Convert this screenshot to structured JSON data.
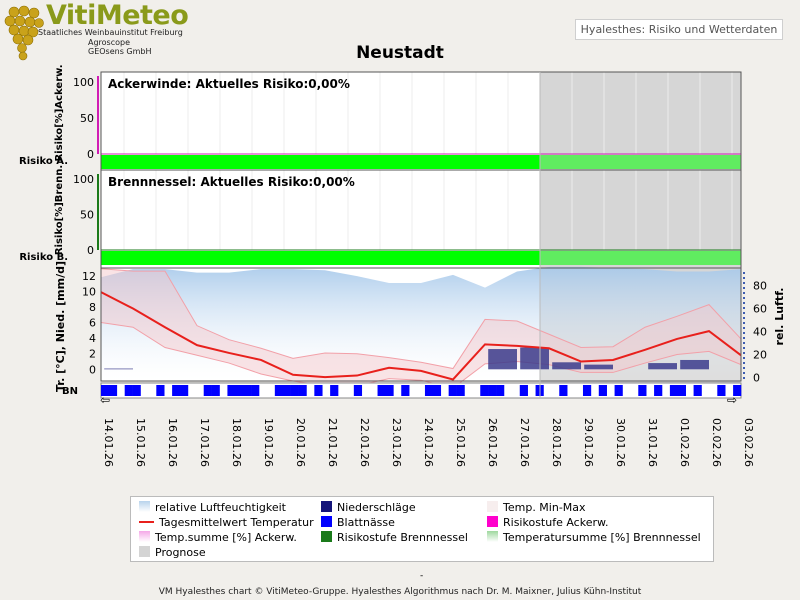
{
  "header": {
    "app_name": "VitiMeteo",
    "org_lines": [
      "Staatliches Weinbauinstitut Freiburg",
      "Agroscope",
      "GEOsens GmbH"
    ],
    "chart_name": "Hyalesthes: Risiko und Wetterdaten"
  },
  "footer": {
    "dash": "-",
    "text": "VM Hyalesthes chart © VitiMeteo-Gruppe. Hyalesthes Algorithmus nach Dr. M. Maixner, Julius Kühn-Institut"
  },
  "legend": {
    "items": [
      {
        "label": "relative Luftfeuchtigkeit",
        "color": "#b8d3ec",
        "kind": "area"
      },
      {
        "label": "Niederschläge",
        "color": "#14147a",
        "kind": "box"
      },
      {
        "label": "Temp. Min-Max",
        "color": "#f7eeee",
        "kind": "box"
      },
      {
        "label": "Tagesmittelwert Temperatur",
        "color": "#e8201c",
        "kind": "line"
      },
      {
        "label": "Blattnässe",
        "color": "#0000ff",
        "kind": "box"
      },
      {
        "label": "Risikostufe Ackerw.",
        "color": "#ff00cc",
        "kind": "box"
      },
      {
        "label": "Temp.summe [%] Ackerw.",
        "color": "#f4a8e8",
        "kind": "grad"
      },
      {
        "label": "Risikostufe Brennnessel",
        "color": "#1a7a1a",
        "kind": "box"
      },
      {
        "label": "Temperatursumme [%] Brennnessel",
        "color": "#9ed89e",
        "kind": "grad"
      },
      {
        "label": "Prognose",
        "color": "#d4d4d4",
        "kind": "box"
      }
    ]
  },
  "chart_data": {
    "title": "Neustadt",
    "dates": [
      "14.01.26",
      "15.01.26",
      "16.01.26",
      "17.01.26",
      "18.01.26",
      "19.01.26",
      "20.01.26",
      "21.01.26",
      "22.01.26",
      "23.01.26",
      "24.01.26",
      "25.01.26",
      "26.01.26",
      "27.01.26",
      "28.01.26",
      "29.01.26",
      "30.01.26",
      "31.01.26",
      "01.02.26",
      "02.02.26",
      "03.02.26"
    ],
    "prognose_from": "28.01.26",
    "panels": [
      {
        "name": "Ackerwinde",
        "annotation": "Ackerwinde: Aktuelles Risiko:0,00%",
        "ylabel": "Risiko[%]Ackerw.",
        "risk_label": "Risiko A.",
        "yticks": [
          "100",
          "50",
          "0"
        ],
        "ylim": [
          0,
          100
        ],
        "risk_level_color": "#00ff00",
        "values": [
          0,
          0,
          0,
          0,
          0,
          0,
          0,
          0,
          0,
          0,
          0,
          0,
          0,
          0,
          0,
          0,
          0,
          0,
          0,
          0,
          0
        ]
      },
      {
        "name": "Brennnessel",
        "annotation": "Brennnessel: Aktuelles Risiko:0,00%",
        "ylabel": "Risiko[%]Brenn.",
        "risk_label": "Risiko B.",
        "yticks": [
          "100",
          "50",
          "0"
        ],
        "ylim": [
          0,
          100
        ],
        "risk_level_color": "#00ff00",
        "values": [
          0,
          0,
          0,
          0,
          0,
          0,
          0,
          0,
          0,
          0,
          0,
          0,
          0,
          0,
          0,
          0,
          0,
          0,
          0,
          0,
          0
        ]
      }
    ],
    "weather": {
      "ylabel_left": "Tr. [°C], Nied. [mm/d]",
      "ylabel_right": "rel. Luftf.",
      "left_ticks": [
        "12",
        "10",
        "8",
        "6",
        "4",
        "2",
        "0"
      ],
      "left_ylim": [
        -1.5,
        13
      ],
      "right_ticks": [
        "80",
        "60",
        "40",
        "20",
        "0"
      ],
      "right_ylim": [
        -3,
        95
      ],
      "humidity": [
        87,
        94,
        94,
        91,
        91,
        94,
        94,
        93,
        88,
        82,
        82,
        89,
        78,
        92,
        96,
        96,
        95,
        94,
        92,
        92,
        94
      ],
      "temp_mean": [
        9.9,
        7.8,
        5.4,
        3.1,
        2.1,
        1.2,
        -0.7,
        -1.0,
        -0.8,
        0.2,
        -0.2,
        -1.3,
        3.2,
        3.0,
        2.7,
        1.0,
        1.2,
        2.5,
        3.9,
        4.9,
        1.8
      ],
      "temp_max": [
        12.9,
        12.6,
        12.6,
        5.6,
        3.8,
        2.7,
        1.4,
        2.1,
        2.0,
        1.5,
        0.9,
        0.1,
        6.4,
        6.2,
        4.5,
        2.8,
        2.9,
        5.4,
        6.8,
        8.3,
        3.9
      ],
      "temp_min": [
        6.0,
        5.4,
        2.8,
        1.8,
        0.8,
        -0.6,
        -1.5,
        -2.1,
        -2.1,
        -1.2,
        -1.4,
        -2.4,
        0.7,
        1.0,
        0.6,
        -0.4,
        -0.4,
        0.8,
        1.9,
        2.3,
        0.6
      ],
      "precip": [
        0,
        0.1,
        0,
        0,
        0,
        0,
        0,
        0,
        0,
        0,
        0,
        0,
        0,
        2.6,
        2.8,
        0.9,
        0.6,
        0,
        0.8,
        1.2,
        0
      ],
      "bn_label": "BN",
      "leaf_wetness": [
        1,
        1,
        0,
        1,
        1,
        0,
        0,
        1,
        0,
        1,
        1,
        0,
        0,
        1,
        1,
        0,
        1,
        1,
        1,
        1,
        0,
        0,
        1,
        1,
        1,
        1,
        0,
        1,
        0,
        1,
        0,
        0,
        1,
        0,
        0,
        1,
        1,
        0,
        1,
        0,
        0,
        1,
        1,
        0,
        1,
        1,
        0,
        0,
        1,
        1,
        1,
        0,
        0,
        1,
        0,
        1,
        0,
        0,
        1,
        0,
        0,
        1,
        0,
        1,
        0,
        1,
        0,
        0,
        1,
        0,
        1,
        0,
        1,
        1,
        0,
        1,
        0,
        0,
        1,
        0,
        1
      ]
    }
  }
}
